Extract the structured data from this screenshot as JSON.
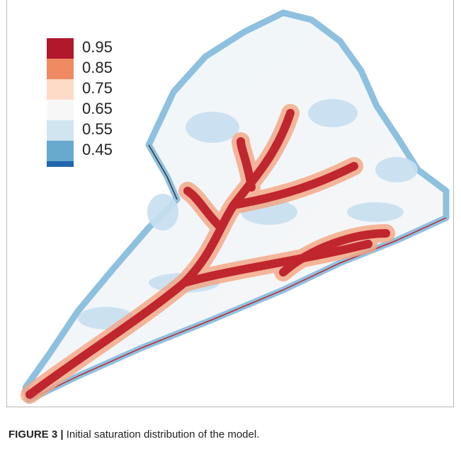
{
  "figure": {
    "legend": {
      "labels": [
        "0.95",
        "0.85",
        "0.75",
        "0.65",
        "0.55",
        "0.45"
      ],
      "colors": [
        "#b2182b",
        "#ef8a62",
        "#fddbc7",
        "#f7f7f7",
        "#d1e5f0",
        "#67a9cf",
        "#2166ac"
      ]
    },
    "caption": {
      "label": "FIGURE 3 |",
      "text": "Initial saturation distribution of the model."
    }
  }
}
